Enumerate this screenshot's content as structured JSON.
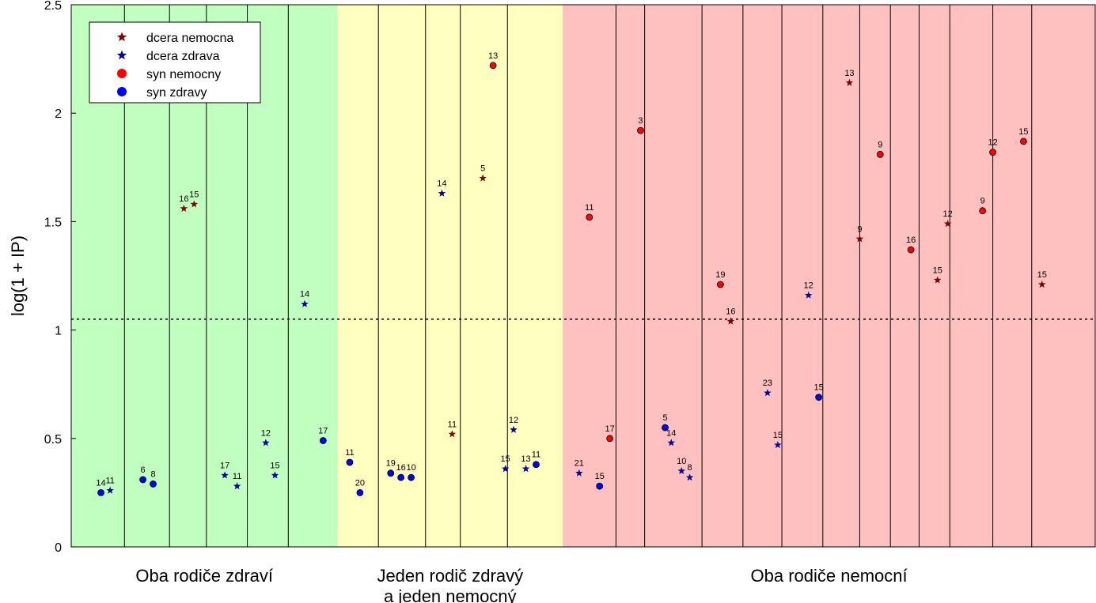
{
  "colors": {
    "group1_bg": "#c0ffc0",
    "group2_bg": "#ffffc0",
    "group3_bg": "#ffc0c0",
    "dcera_nemocna": "#800000",
    "dcera_zdrava": "#000099",
    "syn_nemocny": "#ff0000",
    "syn_zdravy": "#0000ff"
  },
  "chart_data": {
    "type": "scatter",
    "title": "",
    "xlabel": "",
    "ylabel": "log(1 + IP)",
    "ylim": [
      0,
      2.5
    ],
    "yticks": [
      "0",
      "0.5",
      "1",
      "1.5",
      "2",
      "2.5"
    ],
    "threshold_y": 1.05,
    "grid": "vertical family separators",
    "legend_placement": "top-left",
    "legend": [
      "dcera nemocna",
      "dcera zdrava",
      "syn nemocny",
      "syn zdravy"
    ],
    "groups": [
      {
        "label_lines": [
          "Oba rodiče zdraví"
        ],
        "x_range": [
          0,
          13
        ]
      },
      {
        "label_lines": [
          "Jeden rodič zdravý",
          "a jeden nemocný"
        ],
        "x_range": [
          13,
          24
        ]
      },
      {
        "label_lines": [
          "Oba rodiče nemocní"
        ],
        "x_range": [
          24,
          50
        ]
      }
    ],
    "family_separators": [
      2.6,
      4.8,
      6.6,
      8.6,
      10.6,
      15,
      17.3,
      19,
      21.3,
      26.6,
      28,
      30.8,
      32.8,
      34.7,
      36.7,
      38.5,
      40,
      41.4,
      42.9,
      45,
      46.9
    ],
    "series": [
      {
        "name": "dcera nemocna",
        "marker": "star",
        "points": [
          {
            "x": 5.5,
            "y": 1.56,
            "label": "16"
          },
          {
            "x": 6.0,
            "y": 1.58,
            "label": "15"
          },
          {
            "x": 18.6,
            "y": 0.52,
            "label": "11"
          },
          {
            "x": 20.1,
            "y": 1.7,
            "label": "5"
          },
          {
            "x": 32.2,
            "y": 1.04,
            "label": "16"
          },
          {
            "x": 38.0,
            "y": 2.14,
            "label": "13"
          },
          {
            "x": 38.5,
            "y": 1.42,
            "label": "9"
          },
          {
            "x": 42.3,
            "y": 1.23,
            "label": "15"
          },
          {
            "x": 42.8,
            "y": 1.49,
            "label": "12"
          },
          {
            "x": 47.4,
            "y": 1.21,
            "label": "15"
          }
        ]
      },
      {
        "name": "dcera zdrava",
        "marker": "star",
        "points": [
          {
            "x": 1.9,
            "y": 0.26,
            "label": "11"
          },
          {
            "x": 7.5,
            "y": 0.33,
            "label": "17"
          },
          {
            "x": 8.1,
            "y": 0.28,
            "label": "11"
          },
          {
            "x": 9.5,
            "y": 0.48,
            "label": "12"
          },
          {
            "x": 9.95,
            "y": 0.33,
            "label": "15"
          },
          {
            "x": 11.4,
            "y": 1.12,
            "label": "14"
          },
          {
            "x": 18.1,
            "y": 1.63,
            "label": "14"
          },
          {
            "x": 21.2,
            "y": 0.36,
            "label": "15"
          },
          {
            "x": 21.6,
            "y": 0.54,
            "label": "12"
          },
          {
            "x": 22.2,
            "y": 0.36,
            "label": "13"
          },
          {
            "x": 24.8,
            "y": 0.34,
            "label": "21"
          },
          {
            "x": 29.3,
            "y": 0.48,
            "label": "14"
          },
          {
            "x": 29.8,
            "y": 0.35,
            "label": "10"
          },
          {
            "x": 30.2,
            "y": 0.32,
            "label": "8"
          },
          {
            "x": 34.0,
            "y": 0.71,
            "label": "23"
          },
          {
            "x": 34.5,
            "y": 0.47,
            "label": "15"
          },
          {
            "x": 36.0,
            "y": 1.16,
            "label": "12"
          }
        ]
      },
      {
        "name": "syn nemocny",
        "marker": "circle",
        "points": [
          {
            "x": 20.6,
            "y": 2.22,
            "label": "13"
          },
          {
            "x": 25.3,
            "y": 1.52,
            "label": "11"
          },
          {
            "x": 26.3,
            "y": 0.5,
            "label": "17"
          },
          {
            "x": 27.8,
            "y": 1.92,
            "label": "3"
          },
          {
            "x": 31.7,
            "y": 1.21,
            "label": "19"
          },
          {
            "x": 39.5,
            "y": 1.81,
            "label": "9"
          },
          {
            "x": 41.0,
            "y": 1.37,
            "label": "16"
          },
          {
            "x": 44.5,
            "y": 1.55,
            "label": "9"
          },
          {
            "x": 45.0,
            "y": 1.82,
            "label": "12"
          },
          {
            "x": 46.5,
            "y": 1.87,
            "label": "15"
          }
        ]
      },
      {
        "name": "syn zdravy",
        "marker": "circle",
        "points": [
          {
            "x": 1.45,
            "y": 0.25,
            "label": "14"
          },
          {
            "x": 3.5,
            "y": 0.31,
            "label": "6"
          },
          {
            "x": 4.0,
            "y": 0.29,
            "label": "8"
          },
          {
            "x": 12.3,
            "y": 0.49,
            "label": "17"
          },
          {
            "x": 13.6,
            "y": 0.39,
            "label": "11"
          },
          {
            "x": 14.1,
            "y": 0.25,
            "label": "20"
          },
          {
            "x": 15.6,
            "y": 0.34,
            "label": "19"
          },
          {
            "x": 16.1,
            "y": 0.32,
            "label": "16"
          },
          {
            "x": 16.6,
            "y": 0.32,
            "label": "10"
          },
          {
            "x": 22.7,
            "y": 0.38,
            "label": "11"
          },
          {
            "x": 25.8,
            "y": 0.28,
            "label": "15"
          },
          {
            "x": 29.0,
            "y": 0.55,
            "label": "5"
          },
          {
            "x": 36.5,
            "y": 0.69,
            "label": "15"
          }
        ]
      }
    ]
  }
}
